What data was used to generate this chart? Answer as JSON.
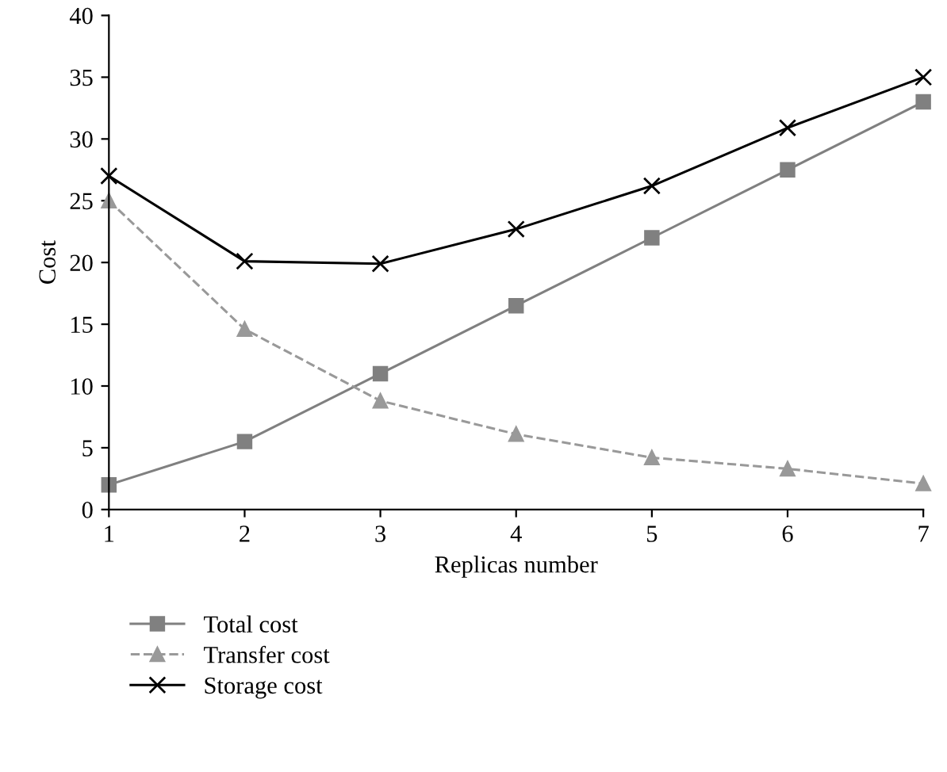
{
  "chart_data": {
    "type": "line",
    "xlabel": "Replicas number",
    "ylabel": "Cost",
    "x": [
      1,
      2,
      3,
      4,
      5,
      6,
      7
    ],
    "series": [
      {
        "name": "Total cost",
        "color": "#808080",
        "marker": "square",
        "line_style": "solid",
        "values": [
          2,
          5.5,
          11,
          16.5,
          22,
          27.5,
          33
        ]
      },
      {
        "name": "Transfer cost",
        "color": "#999999",
        "marker": "triangle",
        "line_style": "dashed",
        "values": [
          25,
          14.6,
          8.8,
          6.1,
          4.2,
          3.3,
          2.1
        ]
      },
      {
        "name": "Storage cost",
        "color": "#000000",
        "marker": "cross",
        "line_style": "solid",
        "values": [
          27,
          20.1,
          19.9,
          22.7,
          26.2,
          30.9,
          35
        ]
      }
    ],
    "xlim": [
      1,
      7
    ],
    "xticks": [
      1,
      2,
      3,
      4,
      5,
      6,
      7
    ],
    "ylim": [
      0,
      40
    ],
    "yticks": [
      0,
      5,
      10,
      15,
      20,
      25,
      30,
      35,
      40
    ],
    "grid": false,
    "legend": "bottom left"
  }
}
